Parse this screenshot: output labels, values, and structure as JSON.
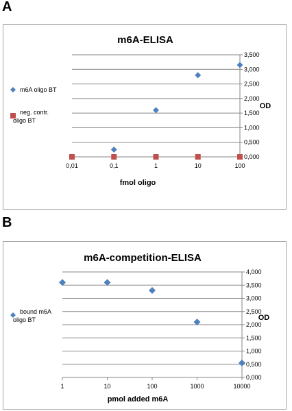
{
  "panels": {
    "a": {
      "label": "A"
    },
    "b": {
      "label": "B"
    }
  },
  "chart_data": [
    {
      "type": "scatter",
      "title": "m6A-ELISA",
      "xlabel": "fmol oligo",
      "ylabel": "OD",
      "x_scale": "log",
      "xlim": [
        0.01,
        100
      ],
      "ylim": [
        0,
        3.5
      ],
      "x_tick_labels": [
        "0,01",
        "0,1",
        "1",
        "10",
        "100"
      ],
      "y_tick_labels": [
        "0,000",
        "0,500",
        "1,000",
        "1,500",
        "2,000",
        "2,500",
        "3,000",
        "3,500"
      ],
      "grid": "horizontal",
      "legend_position": "left",
      "series": [
        {
          "name": "m6A oligo BT",
          "color": "#4f81bd",
          "marker": "diamond",
          "x": [
            0.01,
            0.1,
            1,
            10,
            100
          ],
          "y": [
            0.0,
            0.25,
            1.6,
            2.8,
            3.15
          ]
        },
        {
          "name": "neg. contr. oligo BT",
          "color": "#c0504d",
          "marker": "square",
          "x": [
            0.01,
            0.1,
            1,
            10,
            100
          ],
          "y": [
            0.0,
            0.0,
            0.0,
            0.0,
            0.0
          ]
        }
      ]
    },
    {
      "type": "scatter",
      "title": "m6A-competition-ELISA",
      "xlabel": "pmol  added m6A",
      "ylabel": "OD",
      "x_scale": "log",
      "xlim": [
        1,
        10000
      ],
      "ylim": [
        0,
        4
      ],
      "x_tick_labels": [
        "1",
        "10",
        "100",
        "1000",
        "10000"
      ],
      "y_tick_labels": [
        "0,000",
        "0,500",
        "1,000",
        "1,500",
        "2,000",
        "2,500",
        "3,000",
        "3,500",
        "4,000"
      ],
      "grid": "horizontal",
      "legend_position": "left",
      "series": [
        {
          "name": "bound m6A oligo BT",
          "color": "#4f81bd",
          "marker": "diamond",
          "x": [
            1,
            10,
            100,
            1000,
            10000
          ],
          "y": [
            3.6,
            3.6,
            3.3,
            2.1,
            0.55
          ]
        }
      ]
    }
  ]
}
